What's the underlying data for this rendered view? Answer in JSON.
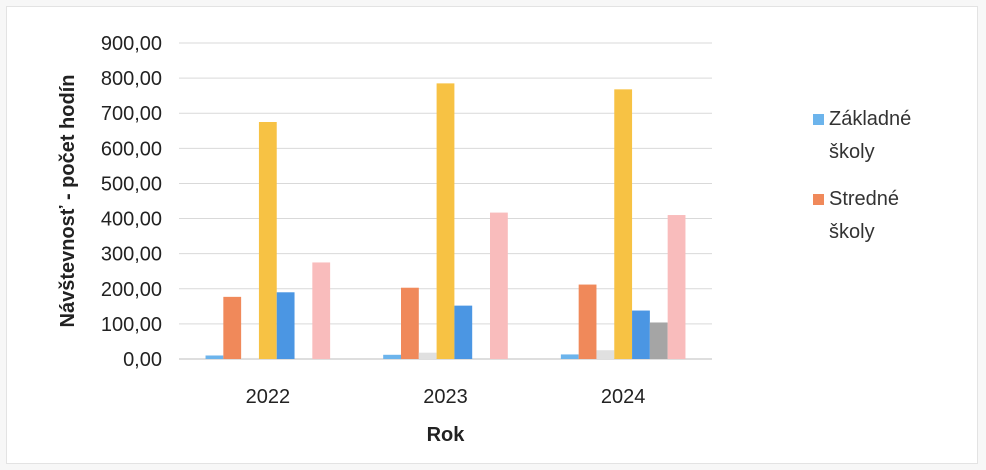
{
  "chart_data": {
    "type": "bar",
    "xlabel": "Rok",
    "ylabel": "Návštevnosť - počet hodín",
    "ylim": [
      0,
      900
    ],
    "ytick_labels": [
      "0,00",
      "100,00",
      "200,00",
      "300,00",
      "400,00",
      "500,00",
      "600,00",
      "700,00",
      "800,00",
      "900,00"
    ],
    "ytick_values": [
      0,
      100,
      200,
      300,
      400,
      500,
      600,
      700,
      800,
      900
    ],
    "grid": true,
    "legend_position": "right",
    "categories": [
      "2022",
      "2023",
      "2024"
    ],
    "series": [
      {
        "name": "Základné školy",
        "color": "#6cb4ec",
        "values": [
          10,
          12,
          13
        ]
      },
      {
        "name": "Stredné školy",
        "color": "#f0895a",
        "values": [
          177,
          203,
          212
        ]
      },
      {
        "color": "#e0e0e0",
        "values": [
          3,
          18,
          25
        ]
      },
      {
        "color": "#f7c244",
        "values": [
          675,
          785,
          768
        ]
      },
      {
        "color": "#4b96e3",
        "values": [
          190,
          152,
          138
        ]
      },
      {
        "color": "#a5a5a5",
        "values": [
          0,
          0,
          104
        ]
      },
      {
        "color": "#f9bcbc",
        "values": [
          275,
          417,
          410
        ]
      }
    ]
  }
}
